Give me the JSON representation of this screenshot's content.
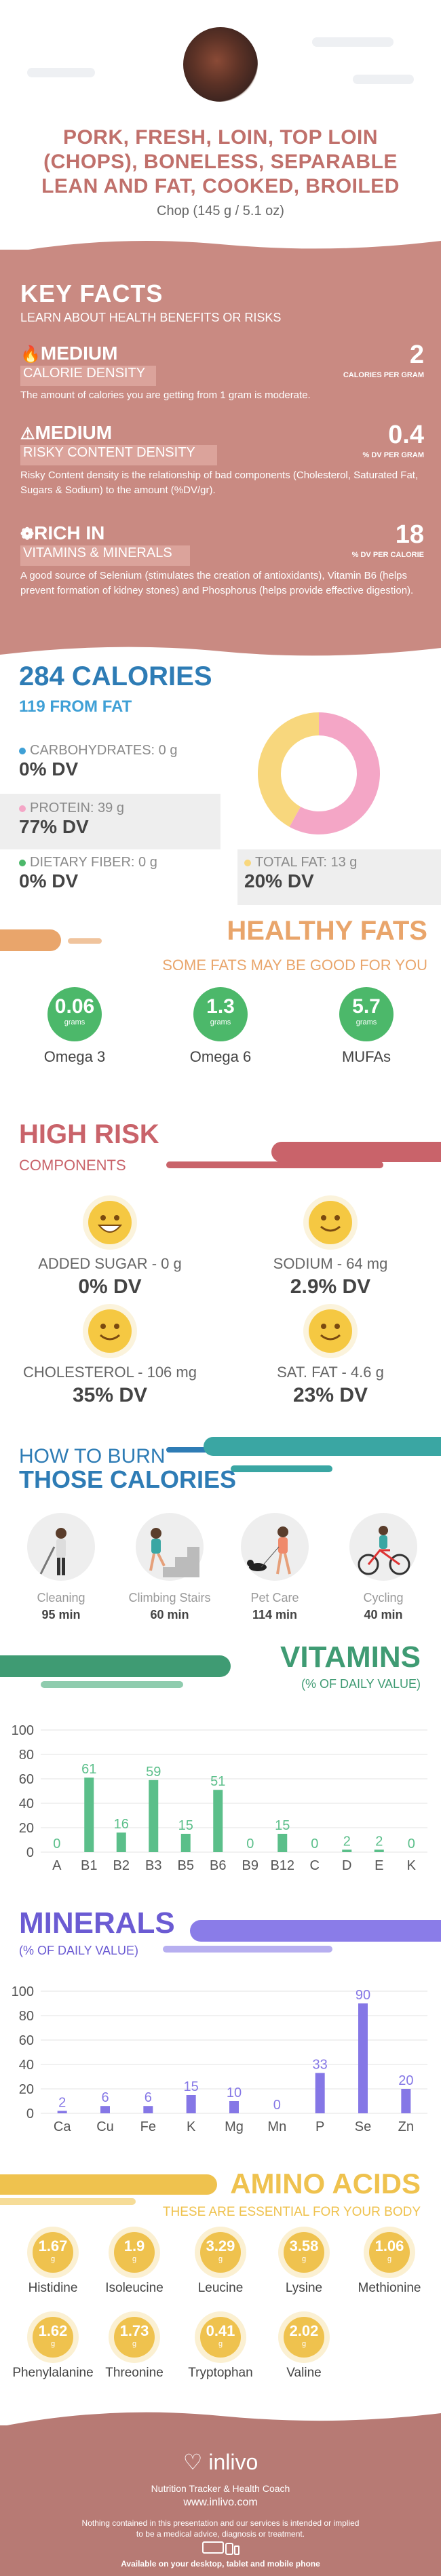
{
  "header": {
    "title": "PORK, FRESH, LOIN, TOP LOIN (CHOPS), BONELESS, SEPARABLE LEAN AND FAT, COOKED, BROILED",
    "serving": "Chop (145 g / 5.1 oz)"
  },
  "key_facts": {
    "title": "KEY FACTS",
    "subtitle": "LEARN ABOUT HEALTH BENEFITS OR RISKS",
    "items": [
      {
        "level": "MEDIUM",
        "name": "CALORIE DENSITY",
        "value": "2",
        "unit": "CALORIES PER GRAM",
        "desc": "The amount of calories you are getting from 1 gram is moderate."
      },
      {
        "level": "MEDIUM",
        "name": "RISKY CONTENT DENSITY",
        "value": "0.4",
        "unit": "% DV PER GRAM",
        "desc": "Risky Content density is the relationship of bad components (Cholesterol, Saturated Fat, Sugars & Sodium) to the amount (%DV/gr)."
      },
      {
        "level": "RICH  IN",
        "name": "VITAMINS & MINERALS",
        "value": "18",
        "unit": "% DV PER CALORIE",
        "desc": "A good source of Selenium (stimulates the creation of antioxidants), Vitamin B6 (helps prevent formation of kidney stones) and Phosphorus (helps provide effective digestion)."
      }
    ]
  },
  "calories": {
    "title": "284 CALORIES",
    "from_fat": "119 FROM FAT",
    "items": [
      {
        "label": "CARBOHYDRATES: 0 g",
        "dv": "0% DV",
        "color": "#3fa0d6"
      },
      {
        "label": "PROTEIN: 39 g",
        "dv": "77% DV",
        "color": "#f4a6c6"
      },
      {
        "label": "DIETARY FIBER: 0 g",
        "dv": "0% DV",
        "color": "#4cb86a"
      },
      {
        "label": "TOTAL FAT: 13 g",
        "dv": "20% DV",
        "color": "#f8d77d"
      }
    ],
    "donut": {
      "protein_fraction": 0.58,
      "fat_fraction": 0.42,
      "protein_color": "#f4a6c6",
      "fat_color": "#f8d77d"
    }
  },
  "healthy_fats": {
    "title": "HEALTHY FATS",
    "subtitle": "SOME FATS MAY BE GOOD FOR YOU",
    "items": [
      {
        "value": "0.06",
        "unit": "grams",
        "name": "Omega 3"
      },
      {
        "value": "1.3",
        "unit": "grams",
        "name": "Omega 6"
      },
      {
        "value": "5.7",
        "unit": "grams",
        "name": "MUFAs"
      }
    ]
  },
  "high_risk": {
    "title": "HIGH RISK",
    "subtitle": "COMPONENTS",
    "items": [
      {
        "name": "ADDED SUGAR - 0 g",
        "dv": "0% DV",
        "icon": "grin-smiley-icon"
      },
      {
        "name": "SODIUM - 64 mg",
        "dv": "2.9% DV",
        "icon": "smile-smiley-icon"
      },
      {
        "name": "CHOLESTEROL - 106 mg",
        "dv": "35% DV",
        "icon": "smile-smiley-icon"
      },
      {
        "name": "SAT. FAT - 4.6 g",
        "dv": "23% DV",
        "icon": "smile-smiley-icon"
      }
    ]
  },
  "burn": {
    "title1": "HOW TO BURN",
    "title2": "THOSE CALORIES",
    "items": [
      {
        "name": "Cleaning",
        "min": "95 min",
        "icon": "cleaning-icon"
      },
      {
        "name": "Climbing Stairs",
        "min": "60 min",
        "icon": "stairs-icon"
      },
      {
        "name": "Pet Care",
        "min": "114 min",
        "icon": "pet-care-icon"
      },
      {
        "name": "Cycling",
        "min": "40 min",
        "icon": "cycling-icon"
      }
    ]
  },
  "vitamins": {
    "title": "VITAMINS",
    "subtitle": "(% OF DAILY VALUE)"
  },
  "minerals": {
    "title": "MINERALS",
    "subtitle": "(% OF DAILY VALUE)"
  },
  "amino": {
    "title": "AMINO ACIDS",
    "subtitle": "THESE ARE ESSENTIAL FOR YOUR BODY",
    "items": [
      {
        "value": "1.67",
        "unit": "g",
        "name": "Histidine"
      },
      {
        "value": "1.9",
        "unit": "g",
        "name": "Isoleucine"
      },
      {
        "value": "3.29",
        "unit": "g",
        "name": "Leucine"
      },
      {
        "value": "3.58",
        "unit": "g",
        "name": "Lysine"
      },
      {
        "value": "1.06",
        "unit": "g",
        "name": "Methionine"
      },
      {
        "value": "1.62",
        "unit": "g",
        "name": "Phenylalanine"
      },
      {
        "value": "1.73",
        "unit": "g",
        "name": "Threonine"
      },
      {
        "value": "0.41",
        "unit": "g",
        "name": "Tryptophan"
      },
      {
        "value": "2.02",
        "unit": "g",
        "name": "Valine"
      }
    ]
  },
  "footer": {
    "brand": "inlivo",
    "tagline": "Nutrition Tracker & Health Coach",
    "url": "www.inlivo.com",
    "disclaimer1": "Nothing contained in this presentation and our services is intended or implied",
    "disclaimer2": "to be a medical advice, diagnosis or treatment.",
    "available": "Available on your desktop, tablet and mobile phone"
  },
  "chart_data": [
    {
      "type": "bar",
      "categories": [
        "A",
        "B1",
        "B2",
        "B3",
        "B5",
        "B6",
        "B9",
        "B12",
        "C",
        "D",
        "E",
        "K"
      ],
      "values": [
        0,
        61,
        16,
        59,
        15,
        51,
        0,
        15,
        0,
        2,
        2,
        0
      ],
      "ylim": [
        0,
        100
      ],
      "yticks": [
        0,
        20,
        40,
        60,
        80,
        100
      ],
      "color": "#5bbf8a",
      "grid": true
    },
    {
      "type": "bar",
      "categories": [
        "Ca",
        "Cu",
        "Fe",
        "K",
        "Mg",
        "Mn",
        "P",
        "Se",
        "Zn"
      ],
      "values": [
        2,
        6,
        6,
        15,
        10,
        0,
        33,
        90,
        20
      ],
      "ylim": [
        0,
        100
      ],
      "yticks": [
        0,
        20,
        40,
        60,
        80,
        100
      ],
      "color": "#8577e6",
      "grid": true
    }
  ]
}
